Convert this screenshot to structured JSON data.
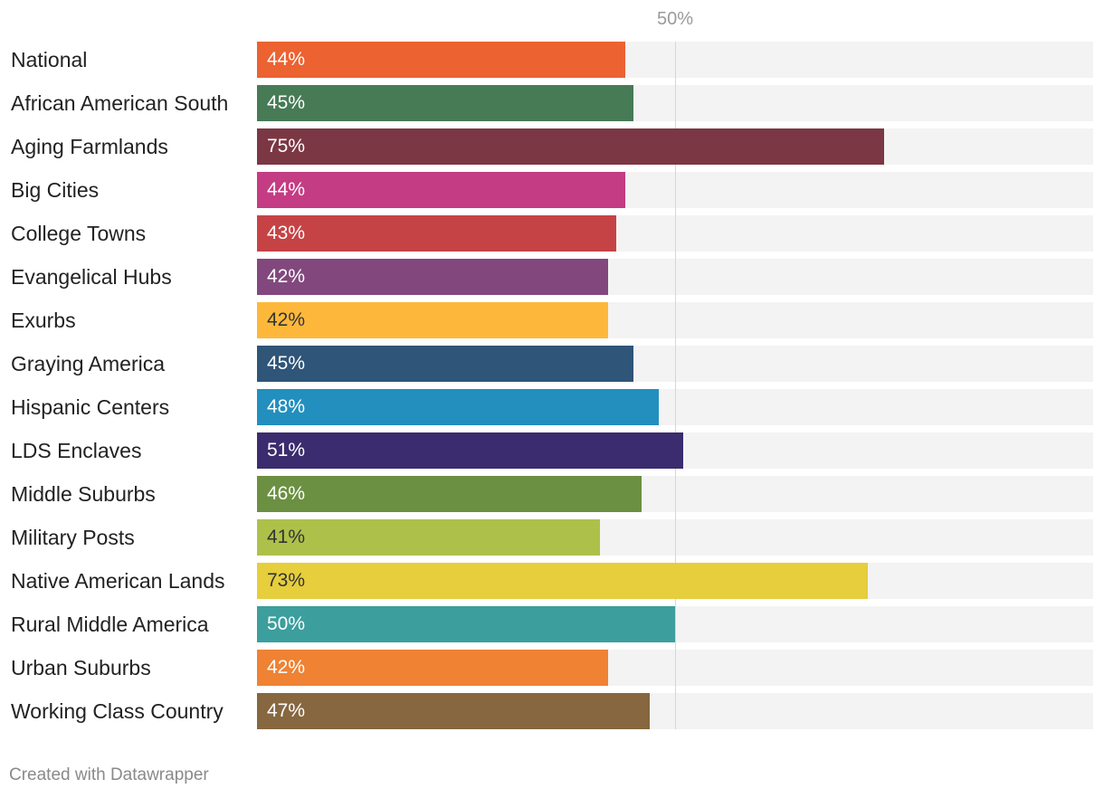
{
  "chart_data": {
    "type": "bar",
    "orientation": "horizontal",
    "categories": [
      "National",
      "African American South",
      "Aging Farmlands",
      "Big Cities",
      "College Towns",
      "Evangelical Hubs",
      "Exurbs",
      "Graying America",
      "Hispanic Centers",
      "LDS Enclaves",
      "Middle Suburbs",
      "Military Posts",
      "Native American Lands",
      "Rural Middle America",
      "Urban Suburbs",
      "Working Class Country"
    ],
    "values": [
      44,
      45,
      75,
      44,
      43,
      42,
      42,
      45,
      48,
      51,
      46,
      41,
      73,
      50,
      42,
      47
    ],
    "value_labels": [
      "44%",
      "45%",
      "75%",
      "44%",
      "43%",
      "42%",
      "42%",
      "45%",
      "48%",
      "51%",
      "46%",
      "41%",
      "73%",
      "50%",
      "42%",
      "47%"
    ],
    "colors": [
      "#ec6231",
      "#467b56",
      "#7b3744",
      "#c43c83",
      "#c64345",
      "#82487e",
      "#fdb83b",
      "#2f5578",
      "#228fbf",
      "#3a2c6e",
      "#6b9042",
      "#adc14a",
      "#e6ce3c",
      "#3c9e9d",
      "#ef8233",
      "#86673f"
    ],
    "dark_text_rows": [
      6,
      11,
      12
    ],
    "xlim": [
      0,
      100
    ],
    "reference_line": {
      "value": 50,
      "label": "50%"
    },
    "title": "",
    "xlabel": "",
    "ylabel": ""
  },
  "footer": {
    "credit": "Created with Datawrapper"
  }
}
